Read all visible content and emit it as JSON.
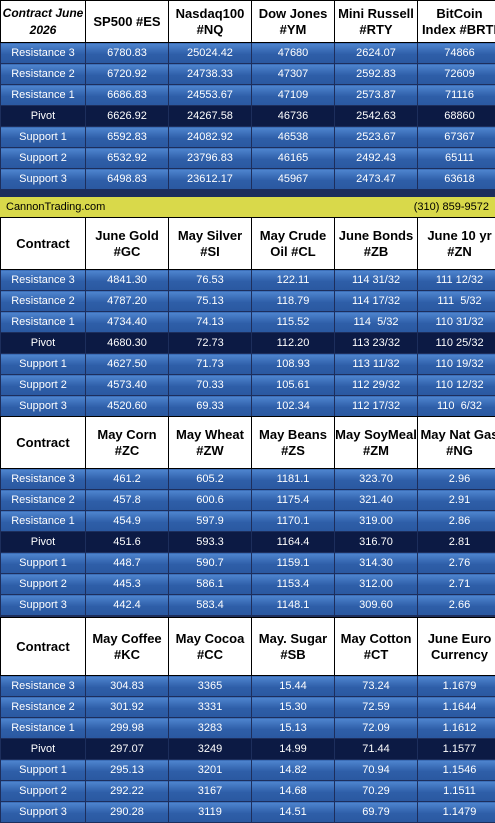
{
  "colors": {
    "header_bg": "#ffffff",
    "row_bg": "#3a6dbd",
    "pivot_bg": "#0c1a44",
    "banner_bg": "#d9d94a"
  },
  "banner": {
    "site": "CannonTrading.com",
    "phone": "(310) 859-9572"
  },
  "row_labels": [
    "Resistance 3",
    "Resistance 2",
    "Resistance 1",
    "Pivot",
    "Support 1",
    "Support 2",
    "Support 3"
  ],
  "tables": [
    {
      "contract_label": "Contract June 2026",
      "headers": [
        "SP500 #ES",
        "Nasdaq100 #NQ",
        "Dow Jones #YM",
        "Mini Russell #RTY",
        "BitCoin Index #BRTI"
      ],
      "rows": [
        [
          "6780.83",
          "25024.42",
          "47680",
          "2624.07",
          "74866"
        ],
        [
          "6720.92",
          "24738.33",
          "47307",
          "2592.83",
          "72609"
        ],
        [
          "6686.83",
          "24553.67",
          "47109",
          "2573.87",
          "71116"
        ],
        [
          "6626.92",
          "24267.58",
          "46736",
          "2542.63",
          "68860"
        ],
        [
          "6592.83",
          "24082.92",
          "46538",
          "2523.67",
          "67367"
        ],
        [
          "6532.92",
          "23796.83",
          "46165",
          "2492.43",
          "65111"
        ],
        [
          "6498.83",
          "23612.17",
          "45967",
          "2473.47",
          "63618"
        ]
      ]
    },
    {
      "contract_label": "Contract",
      "headers": [
        "June Gold #GC",
        "May Silver #SI",
        "May Crude Oil #CL",
        "June Bonds #ZB",
        "June 10 yr #ZN"
      ],
      "rows": [
        [
          "4841.30",
          "76.53",
          "122.11",
          "114 31/32",
          "111 12/32"
        ],
        [
          "4787.20",
          "75.13",
          "118.79",
          "114 17/32",
          "111  5/32"
        ],
        [
          "4734.40",
          "74.13",
          "115.52",
          "114  5/32",
          "110 31/32"
        ],
        [
          "4680.30",
          "72.73",
          "112.20",
          "113 23/32",
          "110 25/32"
        ],
        [
          "4627.50",
          "71.73",
          "108.93",
          "113 11/32",
          "110 19/32"
        ],
        [
          "4573.40",
          "70.33",
          "105.61",
          "112 29/32",
          "110 12/32"
        ],
        [
          "4520.60",
          "69.33",
          "102.34",
          "112 17/32",
          "110  6/32"
        ]
      ]
    },
    {
      "contract_label": "Contract",
      "headers": [
        "May Corn #ZC",
        "May  Wheat #ZW",
        "May Beans #ZS",
        "May SoyMeal #ZM",
        "May Nat Gas #NG"
      ],
      "rows": [
        [
          "461.2",
          "605.2",
          "1181.1",
          "323.70",
          "2.96"
        ],
        [
          "457.8",
          "600.6",
          "1175.4",
          "321.40",
          "2.91"
        ],
        [
          "454.9",
          "597.9",
          "1170.1",
          "319.00",
          "2.86"
        ],
        [
          "451.6",
          "593.3",
          "1164.4",
          "316.70",
          "2.81"
        ],
        [
          "448.7",
          "590.7",
          "1159.1",
          "314.30",
          "2.76"
        ],
        [
          "445.3",
          "586.1",
          "1153.4",
          "312.00",
          "2.71"
        ],
        [
          "442.4",
          "583.4",
          "1148.1",
          "309.60",
          "2.66"
        ]
      ]
    },
    {
      "contract_label": "Contract",
      "headers": [
        "May Coffee #KC",
        "May Cocoa #CC",
        "May. Sugar #SB",
        "May Cotton #CT",
        "June Euro Currency"
      ],
      "rows": [
        [
          "304.83",
          "3365",
          "15.44",
          "73.24",
          "1.1679"
        ],
        [
          "301.92",
          "3331",
          "15.30",
          "72.59",
          "1.1644"
        ],
        [
          "299.98",
          "3283",
          "15.13",
          "72.09",
          "1.1612"
        ],
        [
          "297.07",
          "3249",
          "14.99",
          "71.44",
          "1.1577"
        ],
        [
          "295.13",
          "3201",
          "14.82",
          "70.94",
          "1.1546"
        ],
        [
          "292.22",
          "3167",
          "14.68",
          "70.29",
          "1.1511"
        ],
        [
          "290.28",
          "3119",
          "14.51",
          "69.79",
          "1.1479"
        ]
      ]
    }
  ]
}
